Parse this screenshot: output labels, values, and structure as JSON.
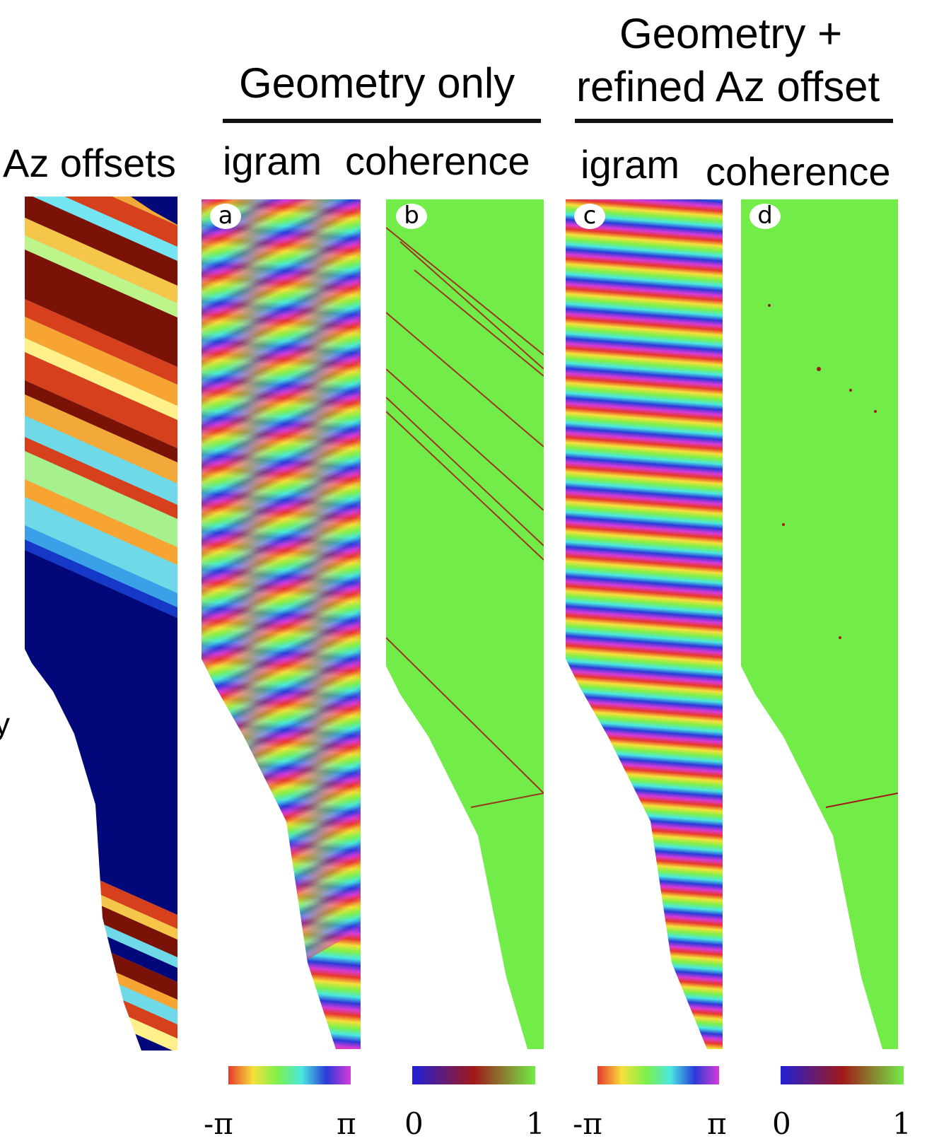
{
  "headers": {
    "geometry_only": "Geometry only",
    "geometry_refined_line1": "Geometry +",
    "geometry_refined_line2": "refined Az offset"
  },
  "columns": {
    "az_offsets": "Az offsets",
    "igram_a": "igram",
    "coherence_b": "coherence",
    "igram_c": "igram",
    "coherence_d": "coherence"
  },
  "panel_letters": [
    "a",
    "b",
    "c",
    "d"
  ],
  "colorbars": {
    "phase_min": "-π",
    "phase_max": "π",
    "coh_min": "0",
    "coh_max": "1"
  },
  "stray_glyph": "y",
  "colors": {
    "coherence_green": "#72ec48",
    "decorrelation_red": "#a01818",
    "offset_navy": "#02087a",
    "offset_darkred": "#7a1208"
  }
}
